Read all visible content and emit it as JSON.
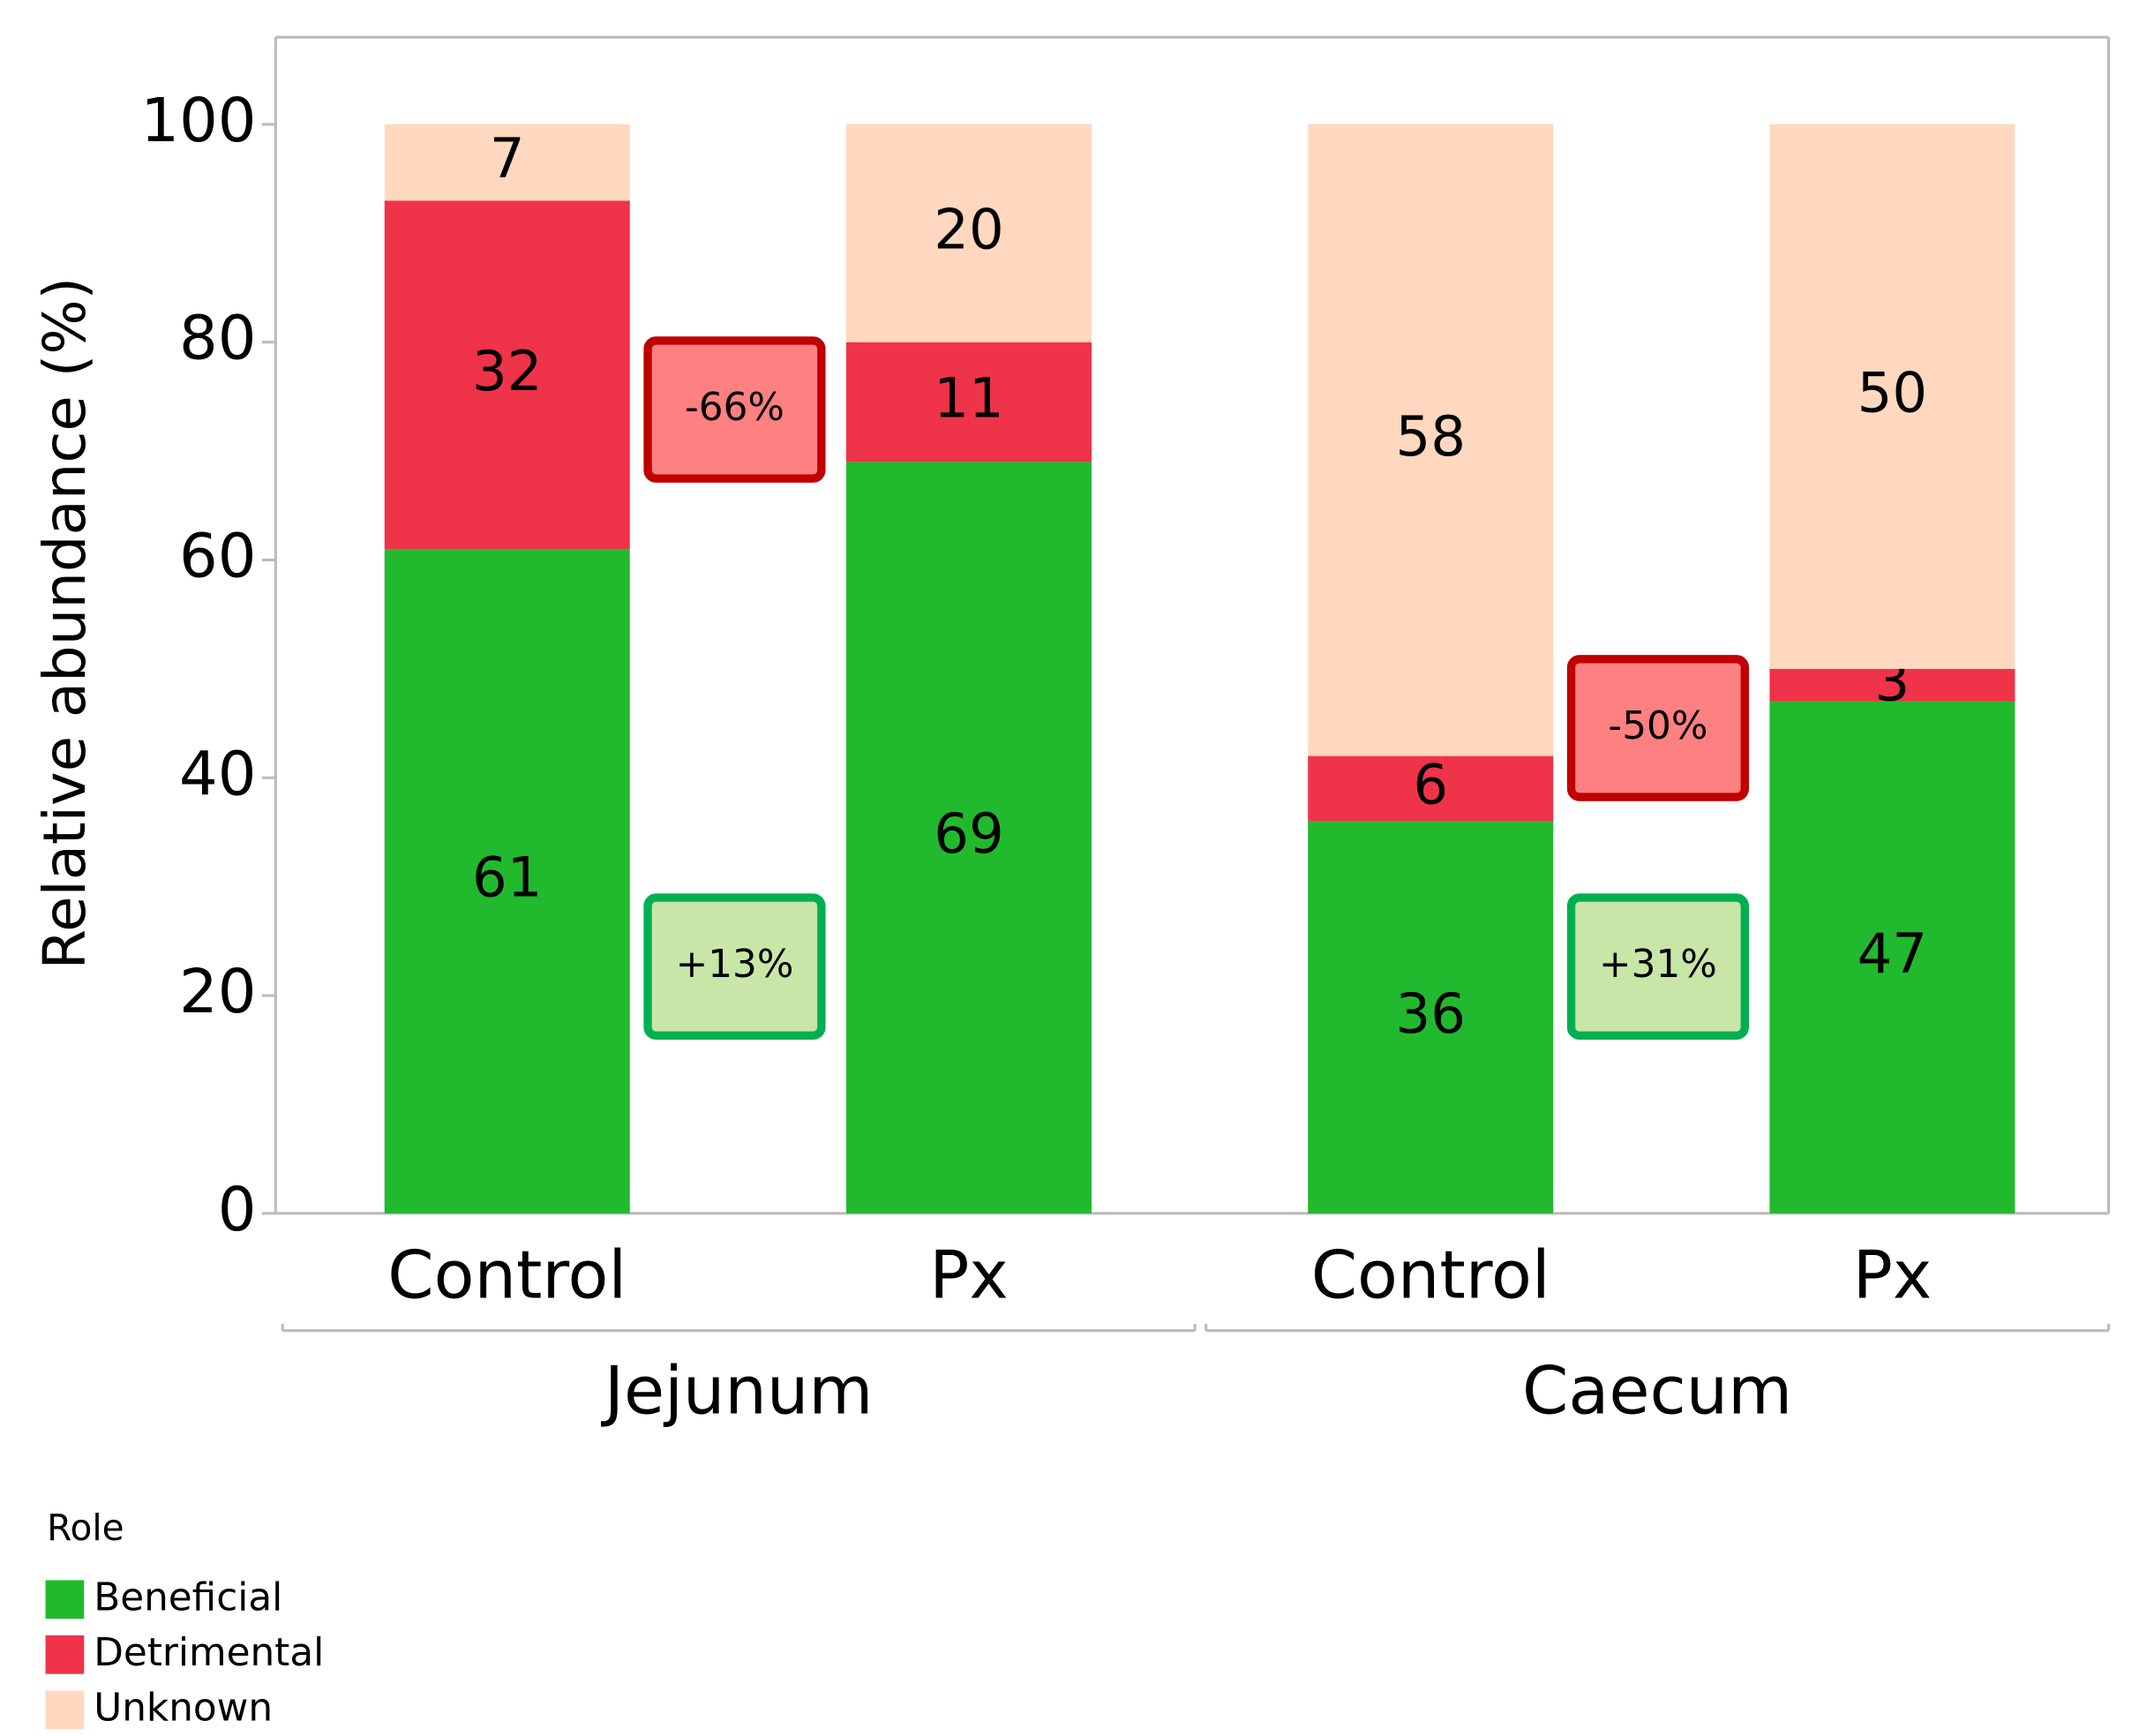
{
  "chart_data": {
    "type": "stacked_bar",
    "categories": [
      "Control",
      "Px",
      "Control",
      "Px"
    ],
    "groups": [
      "Jejunum",
      "Caecum"
    ],
    "series": [
      {
        "name": "Beneficial",
        "color": "#21ba2e",
        "values": [
          61,
          69,
          36,
          47
        ]
      },
      {
        "name": "Detrimental",
        "color": "#ef3349",
        "values": [
          32,
          11,
          6,
          3
        ]
      },
      {
        "name": "Unknown",
        "color": "#ffd8bf",
        "values": [
          7,
          20,
          58,
          50
        ]
      }
    ],
    "ylabel": "Relative abundance (%)",
    "ylim": [
      0,
      108
    ],
    "yticks": [
      0,
      20,
      40,
      60,
      80,
      100
    ],
    "legend_title": "Role",
    "legend_position": "bottom-left",
    "annotations": [
      {
        "text": "-66%",
        "style": "red"
      },
      {
        "text": "+13%",
        "style": "green"
      },
      {
        "text": "-50%",
        "style": "red"
      },
      {
        "text": "+31%",
        "style": "green"
      }
    ]
  }
}
